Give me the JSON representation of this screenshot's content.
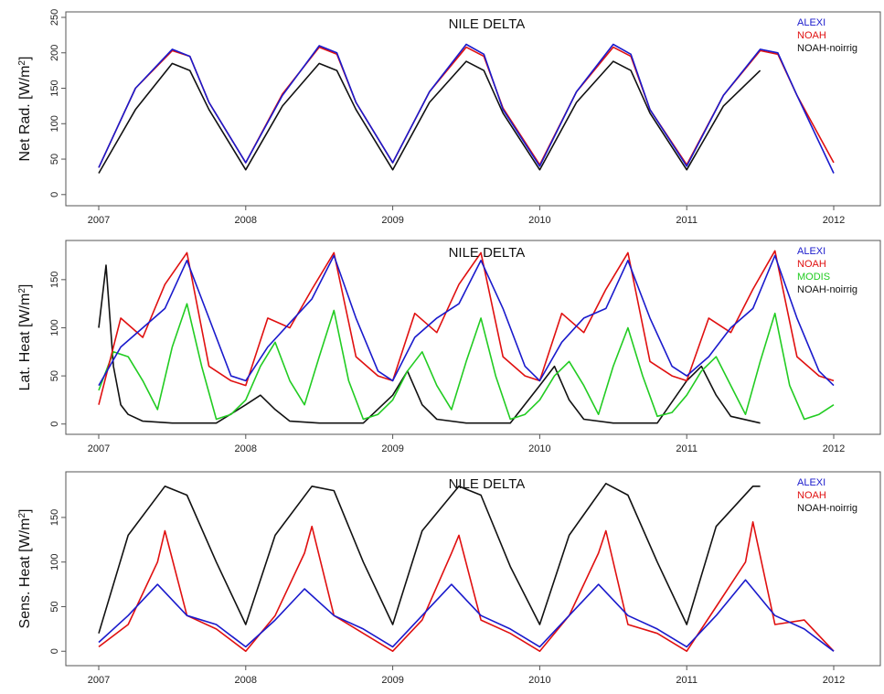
{
  "chart_data": [
    {
      "type": "line",
      "title": "NILE DELTA",
      "ylabel": "Net Rad. [W/m²]",
      "ylabel_main": "Net Rad. [W/m",
      "ylabel_sup": "2",
      "ylabel_close": "]",
      "xlim": [
        2007,
        2012.7
      ],
      "ylim": [
        -8,
        250
      ],
      "x_ticks": [
        2007,
        2008,
        2009,
        2010,
        2011,
        2012
      ],
      "x_tick_labels": [
        "2007",
        "2008",
        "2009",
        "2010",
        "2011",
        "2012"
      ],
      "y_ticks": [
        0,
        50,
        100,
        150,
        200,
        250
      ],
      "y_tick_labels": [
        "0",
        "50",
        "100",
        "150",
        "200",
        "250"
      ],
      "legend_position": "top-right",
      "series": [
        {
          "name": "ALEXI",
          "color": "#1a1acc",
          "x": [
            2007.0,
            2007.25,
            2007.5,
            2007.62,
            2007.75,
            2008.0,
            2008.25,
            2008.5,
            2008.62,
            2008.75,
            2009.0,
            2009.25,
            2009.5,
            2009.62,
            2009.75,
            2010.0,
            2010.25,
            2010.5,
            2010.62,
            2010.75,
            2011.0,
            2011.25,
            2011.5,
            2011.62,
            2011.75,
            2012.0
          ],
          "y": [
            38,
            150,
            205,
            195,
            130,
            45,
            140,
            210,
            200,
            130,
            45,
            145,
            212,
            198,
            120,
            40,
            145,
            212,
            198,
            120,
            40,
            140,
            205,
            200,
            140,
            30
          ]
        },
        {
          "name": "NOAH",
          "color": "#e01010",
          "x": [
            2007.0,
            2007.25,
            2007.5,
            2007.62,
            2007.75,
            2008.0,
            2008.25,
            2008.5,
            2008.62,
            2008.75,
            2009.0,
            2009.25,
            2009.5,
            2009.62,
            2009.75,
            2010.0,
            2010.25,
            2010.5,
            2010.62,
            2010.75,
            2011.0,
            2011.25,
            2011.5,
            2011.62,
            2011.75,
            2012.0
          ],
          "y": [
            38,
            150,
            203,
            195,
            130,
            45,
            142,
            208,
            198,
            130,
            45,
            145,
            208,
            195,
            122,
            42,
            145,
            208,
            195,
            120,
            42,
            140,
            203,
            198,
            140,
            45
          ]
        },
        {
          "name": "NOAH-noirrig",
          "color": "#111111",
          "x": [
            2007.0,
            2007.25,
            2007.5,
            2007.62,
            2007.75,
            2008.0,
            2008.25,
            2008.5,
            2008.62,
            2008.75,
            2009.0,
            2009.25,
            2009.5,
            2009.62,
            2009.75,
            2010.0,
            2010.25,
            2010.5,
            2010.62,
            2010.75,
            2011.0,
            2011.25,
            2011.5
          ],
          "y": [
            30,
            120,
            185,
            175,
            120,
            35,
            125,
            185,
            175,
            120,
            35,
            130,
            188,
            175,
            115,
            35,
            130,
            188,
            175,
            115,
            35,
            125,
            175
          ]
        }
      ]
    },
    {
      "type": "line",
      "title": "NILE DELTA",
      "ylabel": "Lat. Heat [W/m²]",
      "ylabel_main": "Lat. Heat [W/m",
      "ylabel_sup": "2",
      "ylabel_close": "]",
      "xlim": [
        2007,
        2012.7
      ],
      "ylim": [
        -5,
        185
      ],
      "x_ticks": [
        2007,
        2008,
        2009,
        2010,
        2011,
        2012
      ],
      "x_tick_labels": [
        "2007",
        "2008",
        "2009",
        "2010",
        "2011",
        "2012"
      ],
      "y_ticks": [
        0,
        50,
        100,
        150
      ],
      "y_tick_labels": [
        "0",
        "50",
        "100",
        "150"
      ],
      "legend_position": "top-right",
      "series": [
        {
          "name": "ALEXI",
          "color": "#1a1acc",
          "x": [
            2007.0,
            2007.15,
            2007.3,
            2007.45,
            2007.6,
            2007.75,
            2007.9,
            2008.0,
            2008.15,
            2008.3,
            2008.45,
            2008.6,
            2008.75,
            2008.9,
            2009.0,
            2009.15,
            2009.3,
            2009.45,
            2009.6,
            2009.75,
            2009.9,
            2010.0,
            2010.15,
            2010.3,
            2010.45,
            2010.6,
            2010.75,
            2010.9,
            2011.0,
            2011.15,
            2011.3,
            2011.45,
            2011.6,
            2011.75,
            2011.9,
            2012.0
          ],
          "y": [
            40,
            80,
            100,
            120,
            170,
            110,
            50,
            45,
            80,
            105,
            130,
            175,
            110,
            55,
            45,
            90,
            110,
            125,
            170,
            120,
            60,
            45,
            85,
            110,
            120,
            170,
            110,
            60,
            50,
            70,
            100,
            120,
            175,
            110,
            55,
            40
          ]
        },
        {
          "name": "NOAH",
          "color": "#e01010",
          "x": [
            2007.0,
            2007.15,
            2007.3,
            2007.45,
            2007.6,
            2007.75,
            2007.9,
            2008.0,
            2008.15,
            2008.3,
            2008.45,
            2008.6,
            2008.75,
            2008.9,
            2009.0,
            2009.15,
            2009.3,
            2009.45,
            2009.6,
            2009.75,
            2009.9,
            2010.0,
            2010.15,
            2010.3,
            2010.45,
            2010.6,
            2010.75,
            2010.9,
            2011.0,
            2011.15,
            2011.3,
            2011.45,
            2011.6,
            2011.75,
            2011.9,
            2012.0
          ],
          "y": [
            20,
            110,
            90,
            145,
            178,
            60,
            45,
            40,
            110,
            100,
            140,
            178,
            70,
            50,
            45,
            115,
            95,
            145,
            178,
            70,
            50,
            45,
            115,
            95,
            140,
            178,
            65,
            50,
            45,
            110,
            95,
            140,
            180,
            70,
            50,
            45
          ]
        },
        {
          "name": "MODIS",
          "color": "#22cc22",
          "x": [
            2007.0,
            2007.1,
            2007.2,
            2007.3,
            2007.4,
            2007.5,
            2007.6,
            2007.7,
            2007.8,
            2007.9,
            2008.0,
            2008.1,
            2008.2,
            2008.3,
            2008.4,
            2008.5,
            2008.6,
            2008.7,
            2008.8,
            2008.9,
            2009.0,
            2009.1,
            2009.2,
            2009.3,
            2009.4,
            2009.5,
            2009.6,
            2009.7,
            2009.8,
            2009.9,
            2010.0,
            2010.1,
            2010.2,
            2010.3,
            2010.4,
            2010.5,
            2010.6,
            2010.7,
            2010.8,
            2010.9,
            2011.0,
            2011.1,
            2011.2,
            2011.3,
            2011.4,
            2011.5,
            2011.6,
            2011.7,
            2011.8,
            2011.9,
            2012.0
          ],
          "y": [
            35,
            75,
            70,
            45,
            15,
            80,
            125,
            60,
            5,
            10,
            25,
            60,
            85,
            45,
            20,
            70,
            118,
            45,
            5,
            10,
            25,
            55,
            75,
            40,
            15,
            65,
            110,
            50,
            5,
            10,
            25,
            50,
            65,
            40,
            10,
            60,
            100,
            50,
            8,
            12,
            30,
            55,
            70,
            40,
            10,
            65,
            115,
            40,
            5,
            10,
            20
          ]
        },
        {
          "name": "NOAH-noirrig",
          "color": "#111111",
          "x": [
            2007.0,
            2007.05,
            2007.1,
            2007.15,
            2007.2,
            2007.3,
            2007.5,
            2007.8,
            2008.0,
            2008.1,
            2008.2,
            2008.3,
            2008.5,
            2008.8,
            2009.0,
            2009.1,
            2009.2,
            2009.3,
            2009.5,
            2009.8,
            2010.0,
            2010.1,
            2010.2,
            2010.3,
            2010.5,
            2010.8,
            2011.0,
            2011.1,
            2011.2,
            2011.3,
            2011.5
          ],
          "y": [
            100,
            165,
            60,
            20,
            10,
            3,
            1,
            1,
            20,
            30,
            15,
            3,
            1,
            1,
            30,
            55,
            20,
            5,
            1,
            1,
            40,
            60,
            25,
            5,
            1,
            1,
            45,
            60,
            30,
            8,
            1
          ]
        }
      ]
    },
    {
      "type": "line",
      "title": "NILE DELTA",
      "ylabel": "Sens. Heat [W/m²]",
      "ylabel_main": "Sens. Heat [W/m",
      "ylabel_sup": "2",
      "ylabel_close": "]",
      "xlim": [
        2007,
        2012.7
      ],
      "ylim": [
        -10,
        195
      ],
      "x_ticks": [
        2007,
        2008,
        2009,
        2010,
        2011,
        2012
      ],
      "x_tick_labels": [
        "2007",
        "2008",
        "2009",
        "2010",
        "2011",
        "2012"
      ],
      "y_ticks": [
        0,
        50,
        100,
        150
      ],
      "y_tick_labels": [
        "0",
        "50",
        "100",
        "150"
      ],
      "legend_position": "top-right",
      "series": [
        {
          "name": "ALEXI",
          "color": "#1a1acc",
          "x": [
            2007.0,
            2007.2,
            2007.4,
            2007.6,
            2007.8,
            2008.0,
            2008.2,
            2008.4,
            2008.6,
            2008.8,
            2009.0,
            2009.2,
            2009.4,
            2009.6,
            2009.8,
            2010.0,
            2010.2,
            2010.4,
            2010.6,
            2010.8,
            2011.0,
            2011.2,
            2011.4,
            2011.6,
            2011.8,
            2012.0
          ],
          "y": [
            10,
            40,
            75,
            40,
            30,
            5,
            35,
            70,
            40,
            25,
            5,
            40,
            75,
            40,
            25,
            5,
            40,
            75,
            40,
            25,
            5,
            40,
            80,
            40,
            25,
            0
          ]
        },
        {
          "name": "NOAH",
          "color": "#e01010",
          "x": [
            2007.0,
            2007.2,
            2007.4,
            2007.45,
            2007.6,
            2007.8,
            2008.0,
            2008.2,
            2008.4,
            2008.45,
            2008.6,
            2008.8,
            2009.0,
            2009.2,
            2009.4,
            2009.45,
            2009.6,
            2009.8,
            2010.0,
            2010.2,
            2010.4,
            2010.45,
            2010.6,
            2010.8,
            2011.0,
            2011.2,
            2011.4,
            2011.45,
            2011.6,
            2011.8,
            2012.0
          ],
          "y": [
            5,
            30,
            100,
            135,
            40,
            25,
            0,
            40,
            110,
            140,
            40,
            20,
            0,
            35,
            110,
            130,
            35,
            20,
            0,
            40,
            110,
            135,
            30,
            20,
            0,
            50,
            100,
            145,
            30,
            35,
            0
          ]
        },
        {
          "name": "NOAH-noirrig",
          "color": "#111111",
          "x": [
            2007.0,
            2007.2,
            2007.45,
            2007.6,
            2007.8,
            2008.0,
            2008.2,
            2008.45,
            2008.6,
            2008.8,
            2009.0,
            2009.2,
            2009.45,
            2009.6,
            2009.8,
            2010.0,
            2010.2,
            2010.45,
            2010.6,
            2010.8,
            2011.0,
            2011.2,
            2011.45,
            2011.5
          ],
          "y": [
            20,
            130,
            185,
            175,
            100,
            30,
            130,
            185,
            180,
            100,
            30,
            135,
            185,
            175,
            95,
            30,
            130,
            188,
            175,
            100,
            30,
            140,
            185,
            185
          ]
        }
      ]
    }
  ]
}
